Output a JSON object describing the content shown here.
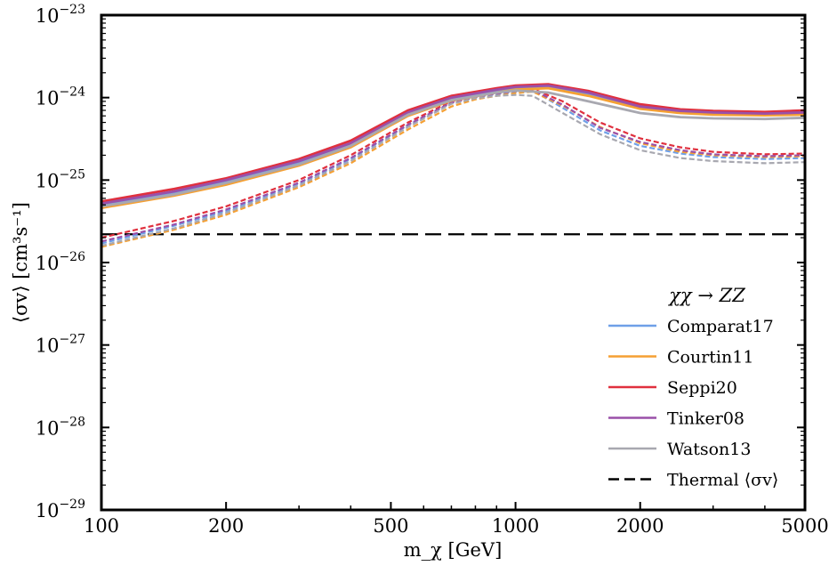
{
  "chart_data": {
    "type": "line",
    "xscale": "log",
    "yscale": "log",
    "xlabel": "m_χ [GeV]",
    "ylabel": "⟨σv⟩ [cm³s⁻¹]",
    "xlim": [
      100,
      5000
    ],
    "ylim_exp": [
      -29,
      -23
    ],
    "xticks": [
      100,
      200,
      500,
      1000,
      2000,
      5000
    ],
    "xtick_labels": [
      "100",
      "200",
      "500",
      "1000",
      "2000",
      "5000"
    ],
    "yticks_exp": [
      -29,
      -28,
      -27,
      -26,
      -25,
      -24,
      -23
    ],
    "ytick_labels": [
      "10",
      "10",
      "10",
      "10",
      "10",
      "10",
      "10"
    ],
    "ytick_exponents": [
      "−29",
      "−28",
      "−27",
      "−26",
      "−25",
      "−24",
      "−23"
    ],
    "legend_title": "χχ → ZZ",
    "legend_position": "lower-right",
    "thermal": {
      "label": "Thermal ⟨σv⟩",
      "value": 2.2e-26
    },
    "series": [
      {
        "name": "Comparat17",
        "color": "#6fa0e8",
        "solid": {
          "x": [
            100,
            150,
            200,
            300,
            400,
            550,
            700,
            900,
            1000,
            1200,
            1500,
            2000,
            2500,
            3000,
            4000,
            5000
          ],
          "y": [
            5e-26,
            7e-26,
            9.5e-26,
            1.6e-25,
            2.7e-25,
            6.3e-25,
            9.5e-25,
            1.2e-24,
            1.3e-24,
            1.35e-24,
            1.1e-24,
            7.6e-25,
            6.8e-25,
            6.5e-25,
            6.3e-25,
            6.5e-25
          ]
        },
        "dashed": {
          "x": [
            100,
            150,
            200,
            300,
            400,
            550,
            700,
            800,
            900,
            1000,
            1100,
            1300,
            1600,
            2000,
            2500,
            3000,
            4000,
            5000
          ],
          "y": [
            1.7e-26,
            2.8e-26,
            4.2e-26,
            9e-26,
            1.8e-25,
            4.6e-25,
            8.6e-25,
            1e-24,
            1.1e-24,
            1.18e-24,
            1.22e-24,
            7.5e-25,
            4e-25,
            2.6e-25,
            2.1e-25,
            1.9e-25,
            1.8e-25,
            1.85e-25
          ]
        }
      },
      {
        "name": "Courtin11",
        "color": "#f5a033",
        "solid": {
          "x": [
            100,
            150,
            200,
            300,
            400,
            550,
            700,
            900,
            1000,
            1200,
            1500,
            2000,
            2500,
            3000,
            4000,
            5000
          ],
          "y": [
            4.6e-26,
            6.5e-26,
            8.8e-26,
            1.5e-25,
            2.5e-25,
            6e-25,
            9.2e-25,
            1.15e-24,
            1.25e-24,
            1.3e-24,
            1.05e-24,
            7.3e-25,
            6.5e-25,
            6.2e-25,
            6.1e-25,
            6.2e-25
          ]
        },
        "dashed": {
          "x": [
            100,
            150,
            200,
            300,
            400,
            550,
            700,
            800,
            900,
            1000,
            1100,
            1300,
            1600,
            2000,
            2500,
            3000,
            4000,
            5000
          ],
          "y": [
            1.55e-26,
            2.5e-26,
            3.8e-26,
            8.2e-26,
            1.6e-25,
            4.1e-25,
            7.8e-25,
            9.5e-25,
            1.05e-24,
            1.13e-24,
            1.18e-24,
            8e-25,
            4.4e-25,
            2.8e-25,
            2.2e-25,
            2e-25,
            1.9e-25,
            1.95e-25
          ]
        }
      },
      {
        "name": "Seppi20",
        "color": "#e0303e",
        "solid": {
          "x": [
            100,
            150,
            200,
            300,
            400,
            550,
            700,
            900,
            1000,
            1200,
            1500,
            2000,
            2500,
            3000,
            4000,
            5000
          ],
          "y": [
            5.5e-26,
            7.8e-26,
            1.05e-25,
            1.8e-25,
            3e-25,
            7e-25,
            1.05e-24,
            1.3e-24,
            1.4e-24,
            1.45e-24,
            1.2e-24,
            8.3e-25,
            7.2e-25,
            6.9e-25,
            6.7e-25,
            7e-25
          ]
        },
        "dashed": {
          "x": [
            100,
            150,
            200,
            300,
            400,
            550,
            700,
            800,
            900,
            1000,
            1100,
            1300,
            1600,
            2000,
            2500,
            3000,
            4000,
            5000
          ],
          "y": [
            2e-26,
            3.2e-26,
            4.8e-26,
            1e-25,
            2e-25,
            5e-25,
            9e-25,
            1.05e-24,
            1.15e-24,
            1.22e-24,
            1.28e-24,
            9e-25,
            5e-25,
            3.2e-25,
            2.5e-25,
            2.2e-25,
            2.05e-25,
            2.1e-25
          ]
        }
      },
      {
        "name": "Tinker08",
        "color": "#9a50a8",
        "solid": {
          "x": [
            100,
            150,
            200,
            300,
            400,
            550,
            700,
            900,
            1000,
            1200,
            1500,
            2000,
            2500,
            3000,
            4000,
            5000
          ],
          "y": [
            5.2e-26,
            7.3e-26,
            1e-25,
            1.7e-25,
            2.8e-25,
            6.6e-25,
            1e-24,
            1.25e-24,
            1.35e-24,
            1.4e-24,
            1.15e-24,
            7.8e-25,
            6.9e-25,
            6.6e-25,
            6.4e-25,
            6.6e-25
          ]
        },
        "dashed": {
          "x": [
            100,
            150,
            200,
            300,
            400,
            550,
            700,
            800,
            900,
            1000,
            1100,
            1300,
            1600,
            2000,
            2500,
            3000,
            4000,
            5000
          ],
          "y": [
            1.8e-26,
            2.9e-26,
            4.4e-26,
            9.3e-26,
            1.85e-25,
            4.7e-25,
            8.7e-25,
            1.02e-24,
            1.12e-24,
            1.2e-24,
            1.24e-24,
            8.2e-25,
            4.3e-25,
            2.9e-25,
            2.3e-25,
            2.05e-25,
            1.95e-25,
            2e-25
          ]
        }
      },
      {
        "name": "Watson13",
        "color": "#a8a8b0",
        "solid": {
          "x": [
            100,
            150,
            200,
            300,
            400,
            550,
            700,
            900,
            1000,
            1200,
            1500,
            2000,
            2500,
            3000,
            4000,
            5000
          ],
          "y": [
            4.8e-26,
            6.7e-26,
            9.2e-26,
            1.55e-25,
            2.6e-25,
            6.2e-25,
            9.3e-25,
            1.15e-24,
            1.22e-24,
            1.15e-24,
            9e-25,
            6.5e-25,
            5.8e-25,
            5.6e-25,
            5.5e-25,
            5.7e-25
          ]
        },
        "dashed": {
          "x": [
            100,
            150,
            200,
            300,
            400,
            550,
            700,
            800,
            900,
            1000,
            1100,
            1300,
            1600,
            2000,
            2500,
            3000,
            4000,
            5000
          ],
          "y": [
            1.6e-26,
            2.6e-26,
            4e-26,
            8.6e-26,
            1.7e-25,
            4.4e-25,
            8.4e-25,
            9.8e-25,
            1.05e-24,
            1.08e-24,
            1.05e-24,
            6.5e-25,
            3.6e-25,
            2.3e-25,
            1.85e-25,
            1.7e-25,
            1.6e-25,
            1.65e-25
          ]
        }
      }
    ]
  }
}
